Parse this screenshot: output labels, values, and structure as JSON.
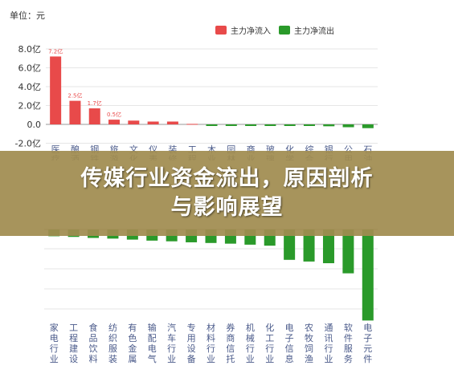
{
  "unit_label": "单位：元",
  "banner": {
    "line1": "传媒行业资金流出，原因剖析",
    "line2": "与影响展望"
  },
  "colors": {
    "inflow": "#e84a4a",
    "outflow": "#2a9a2a",
    "axis": "#cccccc",
    "grid": "#e6e6e6",
    "label": "#4a5a8a"
  },
  "chart_data": [
    {
      "type": "bar",
      "legend": [
        "主力净流入",
        "主力净流出"
      ],
      "legend_position": "top-right",
      "ylim": [
        -2.0,
        8.0
      ],
      "yticks": [
        "8.0亿",
        "6.0亿",
        "4.0亿",
        "2.0亿",
        "0.0",
        "-2.0亿"
      ],
      "ytick_values": [
        8,
        6,
        4,
        2,
        0,
        -2
      ],
      "categories": [
        "医药",
        "酿酒",
        "钢铁",
        "旅游",
        "文化",
        "仪表",
        "装修",
        "工程",
        "木业",
        "园林",
        "商业",
        "玻璃",
        "化学",
        "综合",
        "银行",
        "公用",
        "石油"
      ],
      "category_labels": [
        "医疗",
        "酿酒",
        "钢铁",
        "旅游",
        "文化",
        "仪表",
        "装修",
        "工程",
        "木业",
        "园林",
        "商业",
        "玻璃陶瓷",
        "化学制药",
        "综合",
        "银行",
        "公用",
        "石油"
      ],
      "series": [
        {
          "name": "主力净流入",
          "values": [
            7.2,
            2.5,
            1.7,
            0.5,
            0.4,
            0.3,
            0.3,
            0.05,
            0,
            0,
            0,
            0,
            0,
            0,
            0,
            0,
            0
          ]
        },
        {
          "name": "主力净流出",
          "values": [
            0,
            0,
            0,
            0,
            0,
            0,
            0,
            0,
            -0.02,
            -0.05,
            -0.1,
            -0.1,
            -0.15,
            -0.15,
            -0.2,
            -0.3,
            -0.4
          ]
        }
      ],
      "data_labels": [
        "7.2亿",
        "2.5亿",
        "1.7亿",
        "0.5亿",
        "",
        "",
        "",
        "",
        "",
        "",
        "",
        "",
        "",
        "",
        "",
        "",
        ""
      ]
    },
    {
      "type": "bar",
      "categories": [
        "家电行业",
        "工程建设",
        "食品饮料",
        "纺织服装",
        "有色金属",
        "输配电气",
        "汽车行业",
        "专用设备",
        "材料行业",
        "券商信托",
        "机械行业",
        "化工行业",
        "电子信息",
        "农牧饲渔",
        "通讯行业",
        "软件服务",
        "电子元件"
      ],
      "series": [
        {
          "name": "主力净流出",
          "values": [
            -0.2,
            -0.22,
            -0.25,
            -0.27,
            -0.3,
            -0.33,
            -0.35,
            -0.38,
            -0.4,
            -0.42,
            -0.45,
            -0.48,
            -0.9,
            -0.95,
            -1.0,
            -1.3,
            -2.7
          ]
        }
      ]
    }
  ]
}
